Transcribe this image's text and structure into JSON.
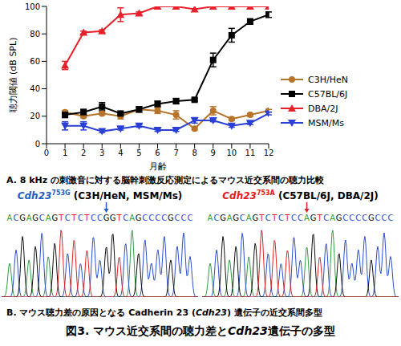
{
  "chart_data": {
    "type": "line",
    "caption": "A. 8 kHz の刺激音に対する脳幹刺激反応測定によるマウス近交系間の聴力比較",
    "x_label": "月齢",
    "y_label": "聴力閾値 (dB SPL)",
    "x": [
      1,
      2,
      3,
      4,
      5,
      6,
      7,
      8,
      9,
      10,
      11,
      12
    ],
    "xlim": [
      0,
      12
    ],
    "xticks": [
      0,
      1,
      2,
      3,
      4,
      5,
      6,
      7,
      8,
      9,
      10,
      11,
      12
    ],
    "ylim": [
      0,
      100
    ],
    "yticks": [
      0,
      20,
      40,
      60,
      80,
      100
    ],
    "grid": false,
    "legend": "right",
    "series": [
      {
        "name": "C3H/HeN",
        "color": "#b8732a",
        "marker": "circle",
        "values": [
          23,
          20,
          22,
          20,
          25,
          24,
          21,
          11,
          24,
          18,
          21,
          24
        ],
        "errors": [
          1,
          1,
          1,
          2,
          2,
          2,
          3,
          1,
          3,
          1,
          1,
          1
        ]
      },
      {
        "name": "C57BL/6J",
        "color": "#000000",
        "marker": "square",
        "values": [
          21,
          23,
          27,
          22,
          25,
          29,
          31,
          32,
          61,
          79,
          89,
          94
        ],
        "errors": [
          2,
          2,
          3,
          1,
          2,
          2,
          2,
          1,
          5,
          5,
          2,
          2
        ]
      },
      {
        "name": "DBA/2J",
        "color": "#e8202a",
        "marker": "triangle",
        "values": [
          57,
          81,
          82,
          94,
          95,
          100,
          100,
          98,
          100,
          100,
          100,
          100
        ],
        "errors": [
          3,
          1,
          1,
          5,
          1,
          0,
          0,
          0,
          0,
          0,
          0,
          0
        ]
      },
      {
        "name": "MSM/Ms",
        "color": "#2a3fd6",
        "marker": "triangle-down",
        "values": [
          13,
          13,
          9,
          11,
          13,
          10,
          10,
          17,
          17,
          13,
          15,
          22
        ],
        "errors": [
          3,
          3,
          1,
          1,
          1,
          1,
          1,
          2,
          1,
          1,
          1,
          1
        ]
      }
    ]
  },
  "panel_b": {
    "caption": "B. マウス聴力差の原因となる Cadherin 23 (Cdh23) 遺伝子の近交系間多型",
    "gene": "Cdh23",
    "alleles": [
      {
        "allele": "753G",
        "strains": "(C3H/HeN, MSM/Ms)",
        "color": "#1f5fbf",
        "sequence": "ACGAGCAGTCTCTCCGGTCAGCCCCGCCC"
      },
      {
        "allele": "753A",
        "strains": "(C57BL/6J, DBA/2J)",
        "color": "#e02020",
        "sequence": "ACGAGCAGTCTCTCCAGTCAGCCCCGCCC"
      }
    ]
  },
  "figure_title": "図3. マウス近交系間の聴力差とCdh23遺伝子の多型"
}
